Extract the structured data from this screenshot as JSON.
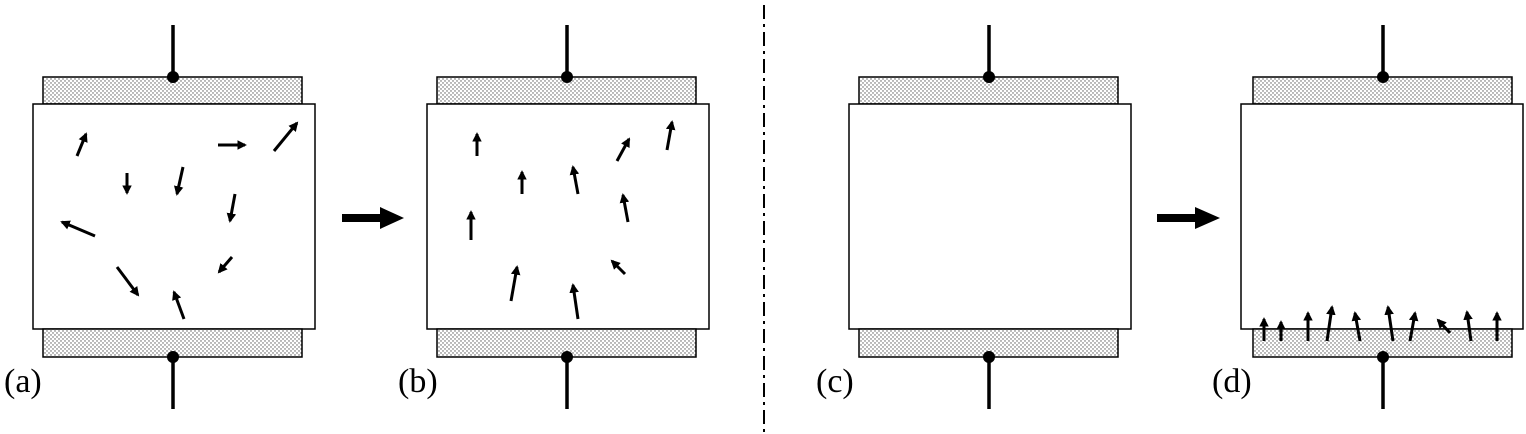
{
  "panels": [
    {
      "label": "(a)",
      "arrows": "random-dipoles"
    },
    {
      "label": "(b)",
      "arrows": "aligned-dipoles"
    },
    {
      "label": "(c)",
      "arrows": "none"
    },
    {
      "label": "(d)",
      "arrows": "interface-dipoles"
    }
  ],
  "separator": "dash-dot",
  "transition_arrow": "right",
  "colors": {
    "ink": "#000000",
    "background": "#ffffff",
    "electrode_dots": "#555555"
  }
}
